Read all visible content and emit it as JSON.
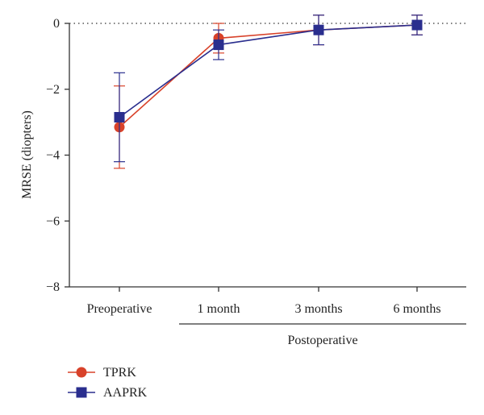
{
  "chart_data": {
    "type": "line",
    "categories": [
      "Preoperative",
      "1 month",
      "3 months",
      "6 months"
    ],
    "group_label": "Postoperative",
    "ylabel": "MRSE (diopters)",
    "xlabel": "",
    "ylim": [
      -8,
      0
    ],
    "yticks": [
      0,
      -2,
      -4,
      -6,
      -8
    ],
    "ytick_labels": [
      "0",
      "−2",
      "−4",
      "−6",
      "−8"
    ],
    "zero_reference_line": "dotted",
    "legend_position": "bottom-left",
    "series": [
      {
        "name": "TPRK",
        "color": "#d8422a",
        "marker": "circle",
        "values": [
          -3.15,
          -0.45,
          -0.2,
          -0.05
        ],
        "error": [
          1.25,
          0.45,
          0.45,
          0.3
        ]
      },
      {
        "name": "AAPRK",
        "color": "#2a2e8e",
        "marker": "square",
        "values": [
          -2.85,
          -0.65,
          -0.2,
          -0.05
        ],
        "error": [
          1.35,
          0.45,
          0.45,
          0.3
        ]
      }
    ]
  }
}
